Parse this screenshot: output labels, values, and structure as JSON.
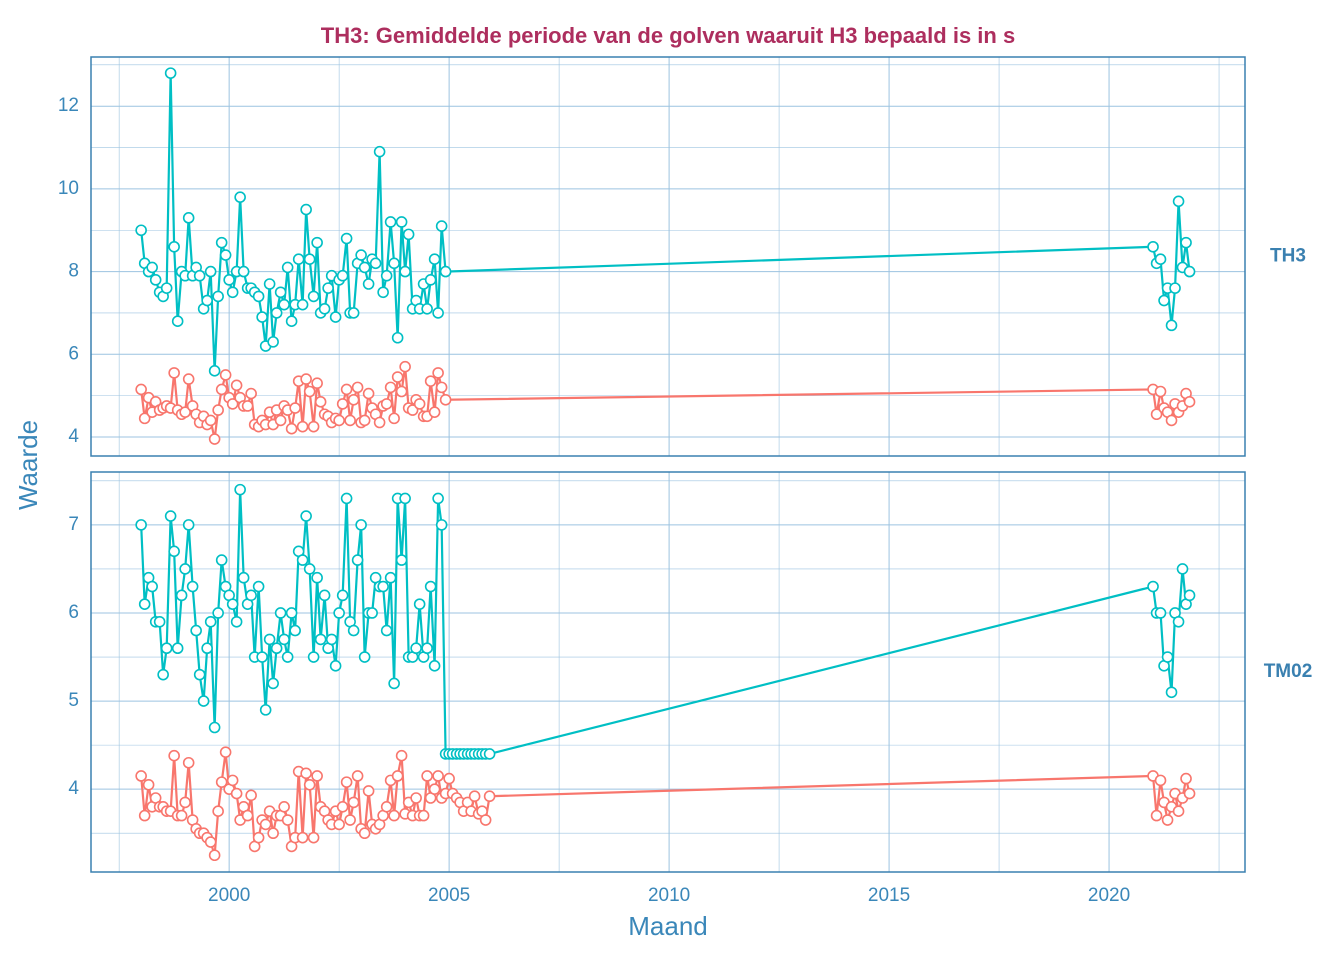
{
  "chart_data": {
    "type": "line",
    "title": "TH3: Gemiddelde periode van de golven waaruit H3 bepaald is in s",
    "xlabel": "Maand",
    "ylabel": "Waarde",
    "xlim": [
      1996.86,
      2023.09
    ],
    "xticks": [
      2000,
      2005,
      2010,
      2015,
      2020
    ],
    "xminor": [
      1997.5,
      2002.5,
      2007.5,
      2012.5,
      2017.5,
      2022.5
    ],
    "grid": true,
    "panels": [
      {
        "label": "TH3",
        "ylim": [
          3.54,
          13.19
        ],
        "yticks": [
          4,
          6,
          8,
          10,
          12
        ],
        "yminor": [
          5,
          7,
          9,
          11,
          13
        ],
        "x": [
          1998,
          1998.08,
          1998.17,
          1998.25,
          1998.33,
          1998.42,
          1998.5,
          1998.58,
          1998.67,
          1998.75,
          1998.83,
          1998.92,
          1999,
          1999.08,
          1999.17,
          1999.25,
          1999.33,
          1999.42,
          1999.5,
          1999.58,
          1999.67,
          1999.75,
          1999.83,
          1999.92,
          2000,
          2000.08,
          2000.17,
          2000.25,
          2000.33,
          2000.42,
          2000.5,
          2000.58,
          2000.67,
          2000.75,
          2000.83,
          2000.92,
          2001,
          2001.08,
          2001.17,
          2001.25,
          2001.33,
          2001.42,
          2001.5,
          2001.58,
          2001.67,
          2001.75,
          2001.83,
          2001.92,
          2002,
          2002.08,
          2002.17,
          2002.25,
          2002.33,
          2002.42,
          2002.5,
          2002.58,
          2002.67,
          2002.75,
          2002.83,
          2002.92,
          2003,
          2003.08,
          2003.17,
          2003.25,
          2003.33,
          2003.42,
          2003.5,
          2003.58,
          2003.67,
          2003.75,
          2003.83,
          2003.92,
          2004,
          2004.08,
          2004.17,
          2004.25,
          2004.33,
          2004.42,
          2004.5,
          2004.58,
          2004.67,
          2004.75,
          2004.83,
          2004.92,
          2021,
          2021.08,
          2021.17,
          2021.25,
          2021.33,
          2021.42,
          2021.5,
          2021.58,
          2021.67,
          2021.75,
          2021.83
        ],
        "series": [
          {
            "color": "#00BFC4",
            "values": [
              9.0,
              8.2,
              8.0,
              8.1,
              7.8,
              7.5,
              7.4,
              7.6,
              12.8,
              8.6,
              6.8,
              8.0,
              7.9,
              9.3,
              7.9,
              8.1,
              7.9,
              7.1,
              7.3,
              8.0,
              5.6,
              7.4,
              8.7,
              8.4,
              7.8,
              7.5,
              8.0,
              9.8,
              8.0,
              7.6,
              7.6,
              7.5,
              7.4,
              6.9,
              6.2,
              7.7,
              6.3,
              7.0,
              7.5,
              7.2,
              8.1,
              6.8,
              7.2,
              8.3,
              7.2,
              9.5,
              8.3,
              7.4,
              8.7,
              7.0,
              7.1,
              7.6,
              7.9,
              6.9,
              7.8,
              7.9,
              8.8,
              7.0,
              7.0,
              8.2,
              8.4,
              8.1,
              7.7,
              8.3,
              8.2,
              10.9,
              7.5,
              7.9,
              9.2,
              8.2,
              6.4,
              9.2,
              8.0,
              8.9,
              7.1,
              7.3,
              7.1,
              7.7,
              7.1,
              7.8,
              8.3,
              7.0,
              9.1,
              8.0,
              8.6,
              8.2,
              8.3,
              7.3,
              7.6,
              6.7,
              7.6,
              9.7,
              8.1,
              8.7,
              8.0
            ]
          },
          {
            "color": "#F8766D",
            "values": [
              5.15,
              4.45,
              4.95,
              4.6,
              4.85,
              4.65,
              4.7,
              4.75,
              4.7,
              5.55,
              4.65,
              4.55,
              4.6,
              5.4,
              4.75,
              4.55,
              4.35,
              4.5,
              4.3,
              4.4,
              3.95,
              4.65,
              5.15,
              5.5,
              4.95,
              4.8,
              5.25,
              4.95,
              4.75,
              4.75,
              5.05,
              4.3,
              4.25,
              4.4,
              4.3,
              4.6,
              4.3,
              4.65,
              4.4,
              4.75,
              4.65,
              4.2,
              4.7,
              5.35,
              4.25,
              5.4,
              5.1,
              4.25,
              5.3,
              4.85,
              4.55,
              4.5,
              4.35,
              4.45,
              4.4,
              4.8,
              5.15,
              4.4,
              4.9,
              5.2,
              4.35,
              4.4,
              5.05,
              4.7,
              4.55,
              4.35,
              4.75,
              4.8,
              5.2,
              4.45,
              5.45,
              5.1,
              5.7,
              4.7,
              4.65,
              4.9,
              4.8,
              4.5,
              4.5,
              5.35,
              4.6,
              5.55,
              5.2,
              4.9,
              5.15,
              4.55,
              5.1,
              4.7,
              4.6,
              4.4,
              4.8,
              4.6,
              4.75,
              5.05,
              4.85
            ]
          }
        ]
      },
      {
        "label": "TM02",
        "ylim": [
          3.06,
          7.6
        ],
        "yticks": [
          4,
          5,
          6,
          7
        ],
        "yminor": [
          3.5,
          4.5,
          5.5,
          6.5,
          7.5
        ],
        "x": [
          1998,
          1998.08,
          1998.17,
          1998.25,
          1998.33,
          1998.42,
          1998.5,
          1998.58,
          1998.67,
          1998.75,
          1998.83,
          1998.92,
          1999,
          1999.08,
          1999.17,
          1999.25,
          1999.33,
          1999.42,
          1999.5,
          1999.58,
          1999.67,
          1999.75,
          1999.83,
          1999.92,
          2000,
          2000.08,
          2000.17,
          2000.25,
          2000.33,
          2000.42,
          2000.5,
          2000.58,
          2000.67,
          2000.75,
          2000.83,
          2000.92,
          2001,
          2001.08,
          2001.17,
          2001.25,
          2001.33,
          2001.42,
          2001.5,
          2001.58,
          2001.67,
          2001.75,
          2001.83,
          2001.92,
          2002,
          2002.08,
          2002.17,
          2002.25,
          2002.33,
          2002.42,
          2002.5,
          2002.58,
          2002.67,
          2002.75,
          2002.83,
          2002.92,
          2003,
          2003.08,
          2003.17,
          2003.25,
          2003.33,
          2003.42,
          2003.5,
          2003.58,
          2003.67,
          2003.75,
          2003.83,
          2003.92,
          2004,
          2004.08,
          2004.17,
          2004.25,
          2004.33,
          2004.42,
          2004.5,
          2004.58,
          2004.67,
          2004.75,
          2004.83,
          2004.92,
          2005,
          2005.08,
          2005.17,
          2005.25,
          2005.33,
          2005.42,
          2005.5,
          2005.58,
          2005.67,
          2005.75,
          2005.83,
          2005.92,
          2021,
          2021.08,
          2021.17,
          2021.25,
          2021.33,
          2021.42,
          2021.5,
          2021.58,
          2021.67,
          2021.75,
          2021.83
        ],
        "series": [
          {
            "color": "#00BFC4",
            "values": [
              7.0,
              6.1,
              6.4,
              6.3,
              5.9,
              5.9,
              5.3,
              5.6,
              7.1,
              6.7,
              5.6,
              6.2,
              6.5,
              7.0,
              6.3,
              5.8,
              5.3,
              5.0,
              5.6,
              5.9,
              4.7,
              6.0,
              6.6,
              6.3,
              6.2,
              6.1,
              5.9,
              7.4,
              6.4,
              6.1,
              6.2,
              5.5,
              6.3,
              5.5,
              4.9,
              5.7,
              5.2,
              5.6,
              6.0,
              5.7,
              5.5,
              6.0,
              5.8,
              6.7,
              6.6,
              7.1,
              6.5,
              5.5,
              6.4,
              5.7,
              6.2,
              5.6,
              5.7,
              5.4,
              6.0,
              6.2,
              7.3,
              5.9,
              5.8,
              6.6,
              7.0,
              5.5,
              6.0,
              6.0,
              6.4,
              6.3,
              6.3,
              5.8,
              6.4,
              5.2,
              7.3,
              6.6,
              7.3,
              5.5,
              5.5,
              5.6,
              6.1,
              5.5,
              5.6,
              6.3,
              5.4,
              7.3,
              7.0,
              4.4,
              4.4,
              4.4,
              4.4,
              4.4,
              4.4,
              4.4,
              4.4,
              4.4,
              4.4,
              4.4,
              4.4,
              4.4,
              6.3,
              6.0,
              6.0,
              5.4,
              5.5,
              5.1,
              6.0,
              5.9,
              6.5,
              6.1,
              6.2
            ]
          },
          {
            "color": "#F8766D",
            "values": [
              4.15,
              3.7,
              4.05,
              3.8,
              3.9,
              3.8,
              3.8,
              3.75,
              3.75,
              4.38,
              3.7,
              3.7,
              3.85,
              4.3,
              3.65,
              3.55,
              3.5,
              3.5,
              3.45,
              3.4,
              3.25,
              3.75,
              4.08,
              4.42,
              4.0,
              4.1,
              3.95,
              3.65,
              3.8,
              3.7,
              3.93,
              3.35,
              3.45,
              3.65,
              3.6,
              3.75,
              3.5,
              3.7,
              3.7,
              3.8,
              3.65,
              3.35,
              3.45,
              4.2,
              3.45,
              4.18,
              4.05,
              3.45,
              4.15,
              3.8,
              3.75,
              3.65,
              3.6,
              3.75,
              3.6,
              3.8,
              4.08,
              3.65,
              3.85,
              4.15,
              3.55,
              3.5,
              3.98,
              3.6,
              3.55,
              3.6,
              3.7,
              3.8,
              4.1,
              3.7,
              4.15,
              4.38,
              3.72,
              3.85,
              3.7,
              3.9,
              3.7,
              3.7,
              4.15,
              3.9,
              4.0,
              4.15,
              3.9,
              3.95,
              4.12,
              3.95,
              3.9,
              3.85,
              3.75,
              3.85,
              3.75,
              3.92,
              3.72,
              3.75,
              3.65,
              3.92,
              4.15,
              3.7,
              4.1,
              3.85,
              3.65,
              3.8,
              3.95,
              3.75,
              3.9,
              4.12,
              3.95
            ]
          }
        ]
      }
    ]
  }
}
